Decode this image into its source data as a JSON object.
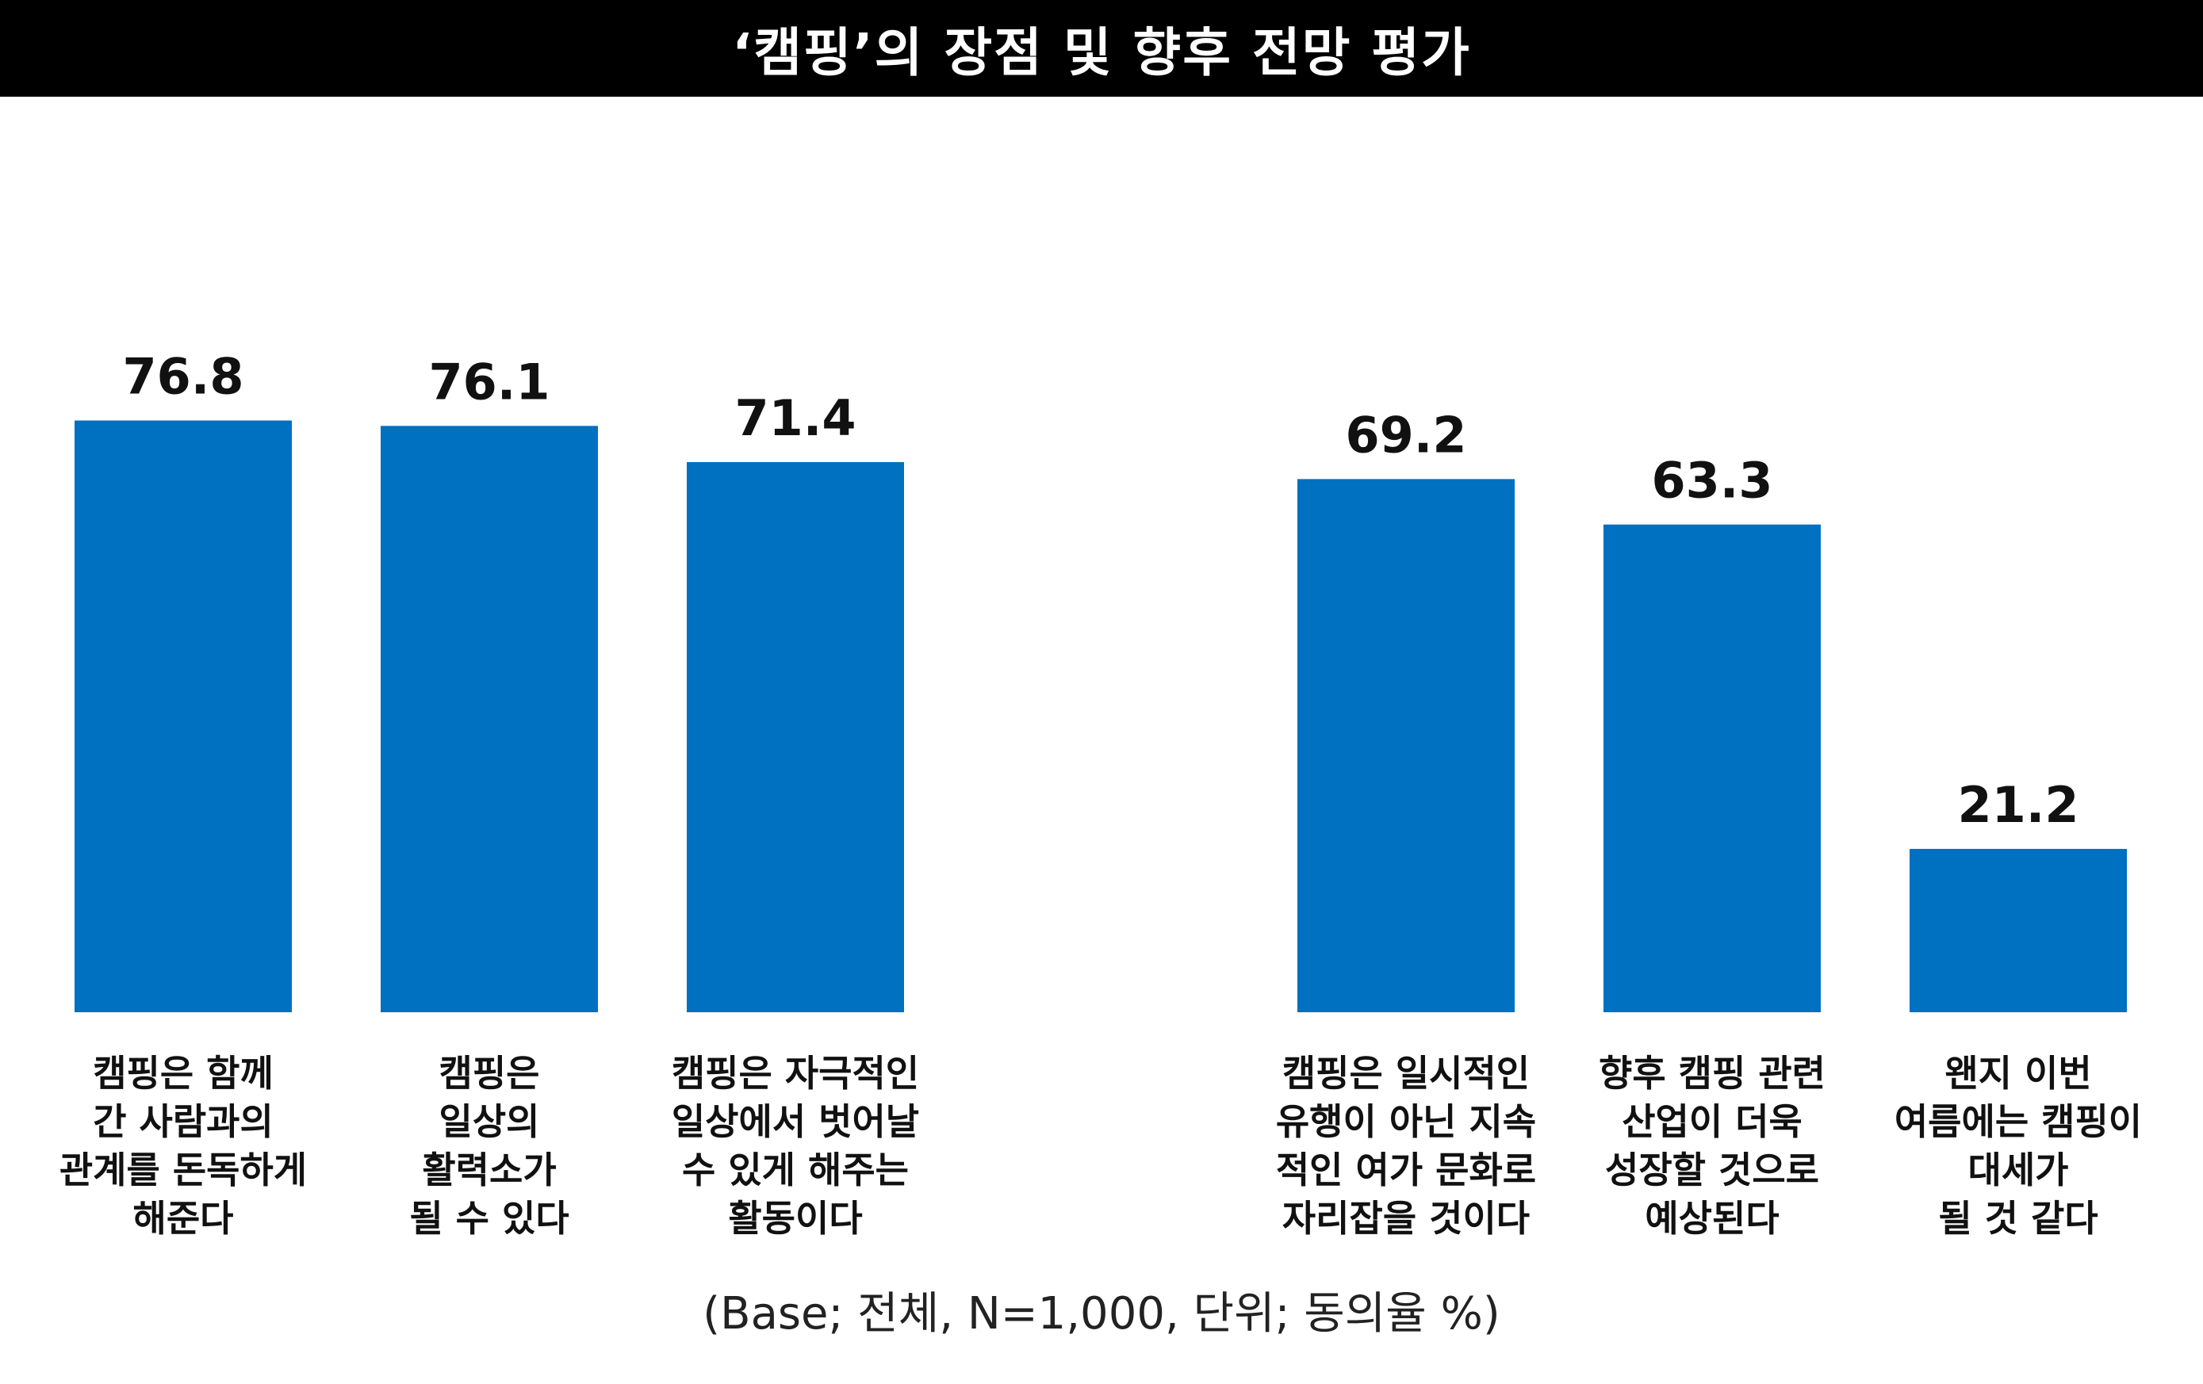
{
  "title": "‘캠핑’의 장점 및 향후 전망 평가",
  "footnote": "(Base; 전체, N=1,000, 단위; 동의율 %)",
  "colors": {
    "bar": "#0070C0",
    "title_bg": "#000000",
    "title_text": "#FFFFFF"
  },
  "chart_data": {
    "type": "bar",
    "title": "‘캠핑’의 장점 및 향후 전망 평가",
    "xlabel": "",
    "ylabel": "",
    "ylim": [
      0,
      100
    ],
    "grid": false,
    "unit": "동의율 %",
    "categories": [
      "캠핑은 함께 간 사람과의 관계를 돈독하게 해준다",
      "캠핑은 일상의 활력소가 될 수 있다",
      "캠핑은 자극적인 일상에서 벗어날 수 있게 해주는 활동이다",
      "캠핑은 일시적인 유행이 아닌 지속적인 여가 문화로 자리잡을 것이다",
      "향후 캠핑 관련 산업이 더욱 성장할 것으로 예상된다",
      "왠지 이번 여름에는 캠핑이 대세가 될 것 같다"
    ],
    "category_lines": [
      [
        "캠핑은 함께",
        "간 사람과의",
        "관계를 돈독하게",
        "해준다"
      ],
      [
        "캠핑은",
        "일상의",
        "활력소가",
        "될 수 있다"
      ],
      [
        "캠핑은 자극적인",
        "일상에서 벗어날",
        "수 있게 해주는",
        "활동이다"
      ],
      [
        "캠핑은 일시적인",
        "유행이 아닌 지속",
        "적인 여가 문화로",
        "자리잡을 것이다"
      ],
      [
        "향후 캠핑 관련",
        "산업이 더욱",
        "성장할 것으로",
        "예상된다"
      ],
      [
        "왠지 이번",
        "여름에는 캠핑이",
        "대세가",
        "될 것 같다"
      ]
    ],
    "groups": [
      [
        0,
        1,
        2
      ],
      [
        3,
        4,
        5
      ]
    ],
    "values": [
      76.8,
      76.1,
      71.4,
      69.2,
      63.3,
      21.2
    ]
  }
}
